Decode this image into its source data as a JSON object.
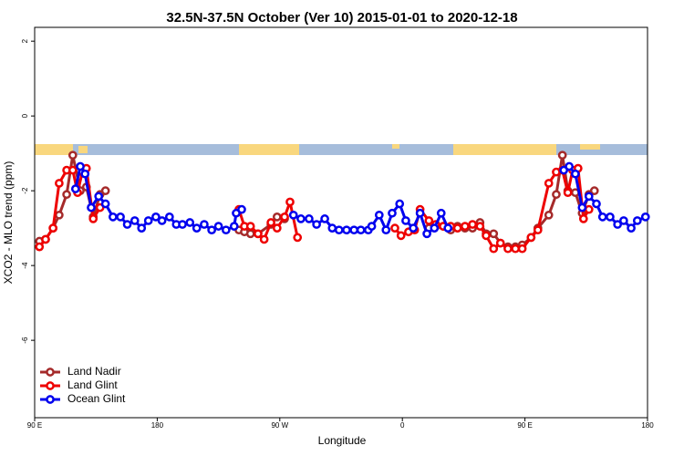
{
  "chart_data": {
    "type": "line",
    "title": "32.5N-37.5N October (Ver 10)   2015-01-01 to 2020-12-18",
    "x_label": "Longitude",
    "y_label": "XCO2 - MLO trend (ppm)",
    "xlim": [
      90,
      540
    ],
    "ylim": [
      -8.07,
      2.37
    ],
    "xticks": [
      {
        "value": 90,
        "label": "90 E"
      },
      {
        "value": 180,
        "label": "180"
      },
      {
        "value": 270,
        "label": "90 W"
      },
      {
        "value": 360,
        "label": "0"
      },
      {
        "value": 450,
        "label": "90 E"
      },
      {
        "value": 540,
        "label": "180"
      }
    ],
    "yticks": [
      2,
      0,
      -2,
      -4,
      -6
    ],
    "legend": "bottom-left",
    "series": [
      {
        "name": "Land Nadir",
        "color": "#a52a2a",
        "x": [
          93.5,
          98,
          103.5,
          108,
          113.5,
          118,
          123.5,
          128,
          133,
          138,
          142,
          190,
          240,
          244,
          248.5,
          254,
          263.5,
          268,
          273.5,
          320,
          379.5,
          384.5,
          390,
          395.5,
          400.5,
          406,
          411.5,
          417,
          421.5,
          427,
          432,
          437.5,
          443,
          448,
          454.5,
          459.5,
          467.5,
          473,
          477.5,
          481.5,
          487,
          492,
          497,
          501
        ],
        "values": [
          -3.35,
          -3.3,
          -3.0,
          -2.65,
          -2.1,
          -1.05,
          -2.0,
          -1.9,
          -2.7,
          -2.1,
          -2.0,
          null,
          -3.05,
          -3.1,
          -3.15,
          -3.15,
          -2.9,
          -2.7,
          -2.75,
          null,
          -3.0,
          -2.95,
          -2.95,
          -3.05,
          -2.95,
          -3.0,
          -3.0,
          -2.85,
          -3.15,
          -3.15,
          -3.4,
          -3.5,
          -3.5,
          -3.45,
          -3.25,
          -3.0,
          -2.65,
          -2.1,
          -1.05,
          -2.0,
          -2.05,
          -2.6,
          -2.1,
          -2.0
        ]
      },
      {
        "name": "Land Glint",
        "color": "#ee0000",
        "x": [
          93.5,
          98,
          103.5,
          108,
          113.5,
          118,
          121.5,
          125,
          128,
          133,
          138,
          190,
          240,
          244,
          248.5,
          254,
          258.5,
          263.5,
          268,
          273.5,
          277.5,
          283,
          320,
          354.5,
          359,
          364.5,
          369,
          373,
          379.5,
          384.5,
          390,
          395.5,
          400.5,
          406,
          411.5,
          417,
          421.5,
          427,
          432,
          437.5,
          443,
          448,
          454.5,
          459.5,
          467.5,
          473,
          477.5,
          481.5,
          485,
          489,
          493,
          497
        ],
        "values": [
          -3.5,
          -3.3,
          -3.0,
          -1.8,
          -1.45,
          -1.45,
          -2.05,
          -1.5,
          -1.4,
          -2.75,
          -2.45,
          null,
          -2.5,
          -2.95,
          -2.95,
          -3.15,
          -3.3,
          -2.85,
          -3.0,
          -2.7,
          -2.3,
          -3.25,
          null,
          -3.0,
          -3.2,
          -3.1,
          -3.05,
          -2.5,
          -2.8,
          -2.9,
          -2.95,
          -2.95,
          -3.0,
          -2.95,
          -2.9,
          -2.95,
          -3.2,
          -3.55,
          -3.4,
          -3.55,
          -3.55,
          -3.55,
          -3.25,
          -3.05,
          -1.8,
          -1.5,
          -1.45,
          -2.05,
          -1.45,
          -1.4,
          -2.75,
          -2.5
        ]
      },
      {
        "name": "Ocean Glint",
        "color": "#0000ee",
        "x": [
          120,
          123.5,
          127,
          131.5,
          137,
          142,
          147.5,
          153,
          158,
          163.5,
          168.5,
          173.5,
          179,
          183.5,
          189,
          194,
          198.5,
          204,
          209,
          214.5,
          220,
          225,
          230.5,
          236.5,
          238,
          242,
          260,
          280,
          285.5,
          291.5,
          297,
          303,
          308.5,
          313.5,
          319,
          324.5,
          329.5,
          335,
          337.5,
          343,
          348,
          352.5,
          358,
          362.5,
          368,
          373,
          378,
          383.5,
          388.5,
          393.5,
          440,
          478.5,
          482.5,
          487,
          492,
          497,
          502.5,
          507,
          512.5,
          518,
          522.5,
          528,
          532.5,
          538.5
        ],
        "values": [
          -1.95,
          -1.35,
          -1.55,
          -2.45,
          -2.15,
          -2.35,
          -2.7,
          -2.7,
          -2.9,
          -2.8,
          -3.0,
          -2.8,
          -2.7,
          -2.8,
          -2.7,
          -2.9,
          -2.9,
          -2.85,
          -3.0,
          -2.9,
          -3.05,
          -2.95,
          -3.05,
          -2.95,
          -2.6,
          -2.5,
          null,
          -2.65,
          -2.75,
          -2.75,
          -2.9,
          -2.75,
          -3.0,
          -3.05,
          -3.05,
          -3.05,
          -3.05,
          -3.05,
          -2.95,
          -2.65,
          -3.05,
          -2.6,
          -2.35,
          -2.8,
          -3.0,
          -2.6,
          -3.15,
          -3.0,
          -2.6,
          -3.0,
          null,
          -1.45,
          -1.35,
          -1.55,
          -2.45,
          -2.15,
          -2.35,
          -2.7,
          -2.7,
          -2.9,
          -2.8,
          -3.0,
          -2.8,
          -2.7
        ]
      }
    ]
  }
}
